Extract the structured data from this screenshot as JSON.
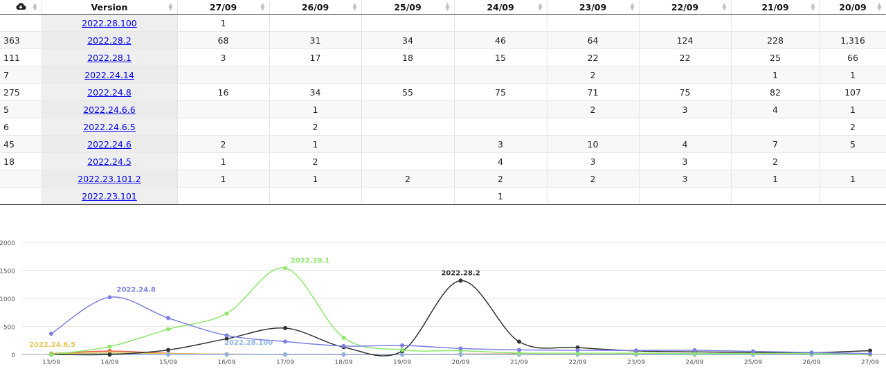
{
  "table": {
    "download_icon": "cloud-download-icon",
    "version_header": "Version",
    "date_headers": [
      "27/09",
      "26/09",
      "25/09",
      "24/09",
      "23/09",
      "22/09",
      "21/09",
      "20/09"
    ],
    "rows": [
      {
        "downloads": "",
        "version": "2022.28.100",
        "cells": [
          "1",
          "",
          "",
          "",
          "",
          "",
          "",
          ""
        ]
      },
      {
        "downloads": "363",
        "version": "2022.28.2",
        "cells": [
          "68",
          "31",
          "34",
          "46",
          "64",
          "124",
          "228",
          "1,316"
        ]
      },
      {
        "downloads": "111",
        "version": "2022.28.1",
        "cells": [
          "3",
          "17",
          "18",
          "15",
          "22",
          "22",
          "25",
          "66"
        ]
      },
      {
        "downloads": "7",
        "version": "2022.24.14",
        "cells": [
          "",
          "",
          "",
          "",
          "2",
          "",
          "1",
          "1"
        ]
      },
      {
        "downloads": "275",
        "version": "2022.24.8",
        "cells": [
          "16",
          "34",
          "55",
          "75",
          "71",
          "75",
          "82",
          "107"
        ]
      },
      {
        "downloads": "5",
        "version": "2022.24.6.6",
        "cells": [
          "",
          "1",
          "",
          "",
          "2",
          "3",
          "4",
          "1"
        ]
      },
      {
        "downloads": "6",
        "version": "2022.24.6.5",
        "cells": [
          "",
          "2",
          "",
          "",
          "",
          "",
          "",
          "2"
        ]
      },
      {
        "downloads": "45",
        "version": "2022.24.6",
        "cells": [
          "2",
          "1",
          "",
          "3",
          "10",
          "4",
          "7",
          "5"
        ]
      },
      {
        "downloads": "18",
        "version": "2022.24.5",
        "cells": [
          "1",
          "2",
          "",
          "4",
          "3",
          "3",
          "2",
          ""
        ]
      },
      {
        "downloads": "",
        "version": "2022.23.101.2",
        "cells": [
          "1",
          "1",
          "2",
          "2",
          "2",
          "3",
          "1",
          "1"
        ]
      },
      {
        "downloads": "",
        "version": "2022.23.101",
        "cells": [
          "",
          "",
          "",
          "1",
          "",
          "",
          "",
          ""
        ]
      }
    ]
  },
  "chart_data": {
    "type": "line",
    "x": [
      "13/09",
      "14/09",
      "15/09",
      "16/09",
      "17/09",
      "18/09",
      "19/09",
      "20/09",
      "21/09",
      "22/09",
      "23/09",
      "24/09",
      "25/09",
      "26/09",
      "27/09"
    ],
    "ylim": [
      0,
      2000
    ],
    "yticks": [
      0,
      500,
      1000,
      1500,
      2000
    ],
    "grid": true,
    "series": [
      {
        "name": "2022.24.8",
        "color": "#7b80e0",
        "values": [
          370,
          1020,
          650,
          340,
          230,
          150,
          160,
          107,
          82,
          75,
          71,
          75,
          55,
          34,
          16
        ]
      },
      {
        "name": "2022.28.1",
        "color": "#8ce86c",
        "values": [
          0,
          140,
          450,
          730,
          1540,
          300,
          80,
          66,
          25,
          22,
          22,
          15,
          18,
          17,
          3
        ]
      },
      {
        "name": "2022.28.2",
        "color": "#333333",
        "values": [
          0,
          0,
          80,
          280,
          470,
          130,
          60,
          1316,
          228,
          124,
          64,
          46,
          34,
          31,
          68
        ]
      },
      {
        "name": "2022.28.100",
        "color": "#8fb2e8",
        "values": [
          0,
          0,
          0,
          0,
          0,
          0,
          0,
          0,
          0,
          0,
          0,
          0,
          0,
          0,
          1
        ]
      },
      {
        "name": "2022.24.6.5",
        "color": "#e8c85a",
        "values": [
          10,
          30,
          15,
          5,
          2,
          2,
          2,
          2,
          0,
          0,
          0,
          0,
          0,
          2,
          0
        ]
      },
      {
        "name": "",
        "color": "#e8553a",
        "values": [
          15,
          60,
          20,
          5,
          2,
          2,
          2,
          5,
          7,
          4,
          10,
          3,
          0,
          1,
          2
        ]
      },
      {
        "name": "",
        "color": "#5ab0c0",
        "values": [
          5,
          10,
          5,
          3,
          2,
          2,
          2,
          3,
          3,
          3,
          3,
          4,
          0,
          2,
          1
        ]
      }
    ],
    "labels": [
      {
        "series": "2022.24.8",
        "x": "14/09",
        "text": "2022.24.8"
      },
      {
        "series": "2022.28.1",
        "x": "17/09",
        "text": "2022.28.1"
      },
      {
        "series": "2022.28.2",
        "x": "20/09",
        "text": "2022.28.2"
      },
      {
        "series": "2022.28.100",
        "x": "17/09",
        "text": "2022.28.100"
      },
      {
        "series": "2022.24.6.5",
        "x": "13/09",
        "text": "2022.24.6.5"
      }
    ]
  }
}
